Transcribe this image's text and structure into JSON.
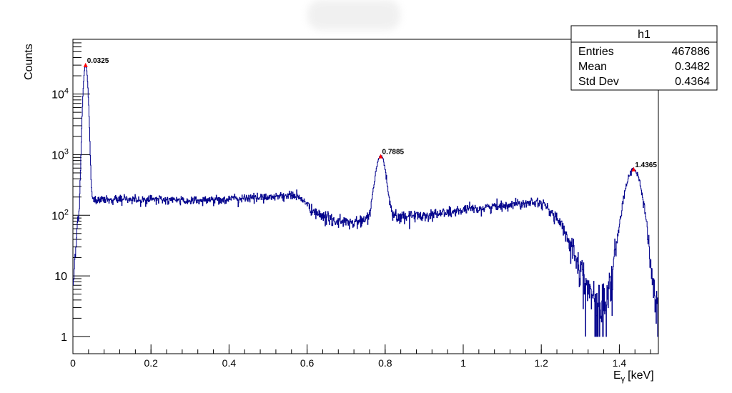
{
  "chart_data": {
    "type": "line",
    "title": "",
    "xlabel": "E",
    "xlabel_sub": "γ",
    "xlabel_unit": "[keV]",
    "ylabel": "Counts",
    "xlim": [
      0,
      1.5
    ],
    "ylim": [
      0.52,
      80000
    ],
    "yscale": "log",
    "grid": false,
    "line_color": "#00008b",
    "marker_color": "#ff0000",
    "x_ticks": [
      {
        "value": 0,
        "label": "0"
      },
      {
        "value": 0.2,
        "label": "0.2"
      },
      {
        "value": 0.4,
        "label": "0.4"
      },
      {
        "value": 0.6,
        "label": "0.6"
      },
      {
        "value": 0.8,
        "label": "0.8"
      },
      {
        "value": 1,
        "label": "1"
      },
      {
        "value": 1.2,
        "label": "1.2"
      },
      {
        "value": 1.4,
        "label": "1.4"
      }
    ],
    "y_ticks": [
      {
        "value": 1,
        "base": "1",
        "exp": ""
      },
      {
        "value": 10,
        "base": "10",
        "exp": ""
      },
      {
        "value": 100,
        "base": "10",
        "exp": "2"
      },
      {
        "value": 1000,
        "base": "10",
        "exp": "3"
      },
      {
        "value": 10000,
        "base": "10",
        "exp": "4"
      }
    ],
    "bins": 1500,
    "baseline": [
      [
        0.0,
        5
      ],
      [
        0.005,
        20
      ],
      [
        0.012,
        80
      ],
      [
        0.022,
        150
      ],
      [
        0.045,
        175
      ],
      [
        0.1,
        185
      ],
      [
        0.2,
        182
      ],
      [
        0.3,
        175
      ],
      [
        0.4,
        185
      ],
      [
        0.5,
        200
      ],
      [
        0.56,
        215
      ],
      [
        0.58,
        200
      ],
      [
        0.6,
        150
      ],
      [
        0.62,
        110
      ],
      [
        0.65,
        90
      ],
      [
        0.7,
        75
      ],
      [
        0.74,
        78
      ],
      [
        0.76,
        90
      ],
      [
        0.82,
        95
      ],
      [
        0.9,
        100
      ],
      [
        1.0,
        120
      ],
      [
        1.1,
        145
      ],
      [
        1.18,
        170
      ],
      [
        1.2,
        165
      ],
      [
        1.24,
        90
      ],
      [
        1.28,
        30
      ],
      [
        1.31,
        10
      ],
      [
        1.33,
        4
      ],
      [
        1.35,
        3
      ],
      [
        1.37,
        4
      ],
      [
        1.39,
        20
      ],
      [
        1.41,
        50
      ],
      [
        1.45,
        30
      ],
      [
        1.47,
        15
      ],
      [
        1.49,
        4
      ],
      [
        1.5,
        1.5
      ]
    ],
    "peaks": [
      {
        "x": 0.0325,
        "height": 30000,
        "sigma": 0.0045,
        "label": "0.0325"
      },
      {
        "x": 0.7885,
        "height": 850,
        "sigma": 0.0105,
        "label": "0.7885"
      },
      {
        "x": 1.4365,
        "height": 540,
        "sigma": 0.0155,
        "label": "1.4365"
      }
    ]
  },
  "stats_box": {
    "title": "h1",
    "rows": [
      {
        "label": "Entries",
        "value": "467886"
      },
      {
        "label": "Mean",
        "value": "0.3482"
      },
      {
        "label": "Std Dev",
        "value": "0.4364"
      }
    ]
  }
}
